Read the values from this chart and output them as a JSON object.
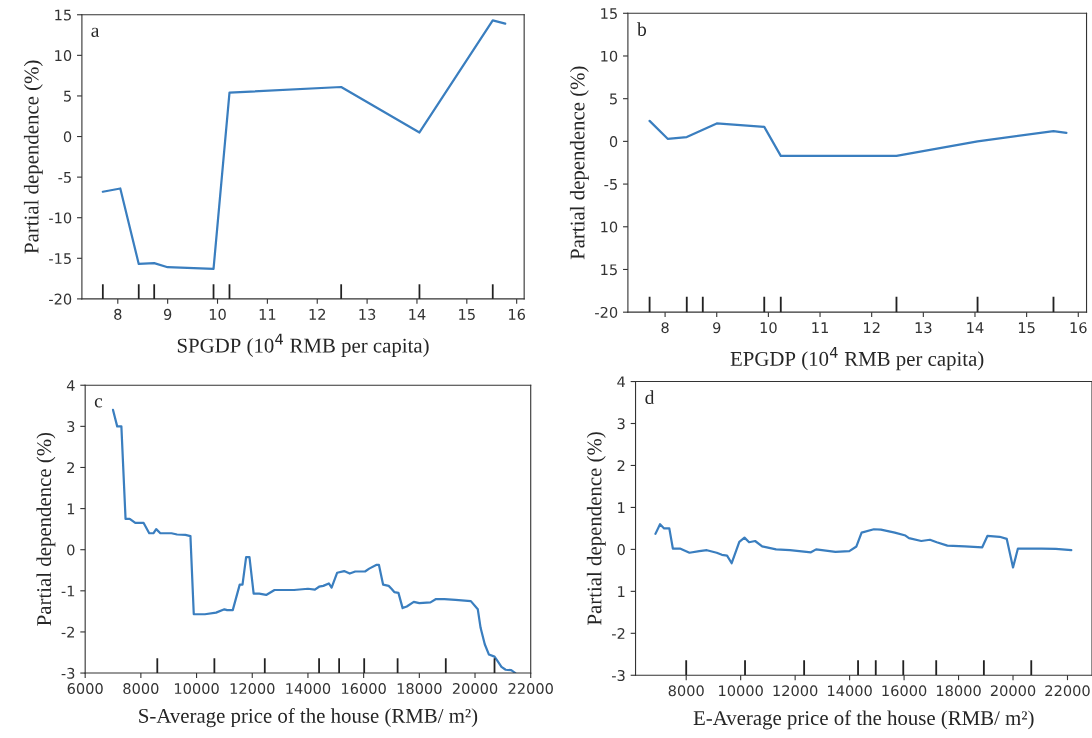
{
  "chart_data": [
    {
      "type": "line",
      "xlabel": "SPGDP (10$^{4}$ RMB per capita)",
      "ylabel": "Partial dependence (%)",
      "annotations": [
        "a"
      ],
      "xlim": [
        7.28,
        16.15
      ],
      "xticks": [
        8,
        9,
        10,
        11,
        12,
        13,
        14,
        15,
        16
      ],
      "ylim": [
        -20,
        15
      ],
      "yticks": [
        -20,
        -15,
        -10,
        -5,
        0,
        5,
        10,
        15
      ],
      "grid": false,
      "legend": false,
      "series": [
        {
          "color": "#3a7ebf",
          "x": [
            7.7,
            8.05,
            8.42,
            8.73,
            9.0,
            9.92,
            10.24,
            12.48,
            14.05,
            15.52,
            15.77
          ],
          "values": [
            -6.8,
            -6.4,
            -15.7,
            -15.6,
            -16.1,
            -16.3,
            5.4,
            6.1,
            0.5,
            14.3,
            13.9
          ]
        },
        {
          "type": "bar",
          "color": "#222222",
          "x": [
            7.7,
            8.42,
            8.73,
            9.92,
            10.24,
            12.48,
            14.05,
            15.52
          ],
          "base": [
            -20,
            -20,
            -20,
            -20,
            -20,
            -20,
            -20,
            -20
          ],
          "values": [
            1.8,
            1.8,
            1.8,
            1.8,
            1.8,
            1.8,
            1.8,
            1.8
          ]
        }
      ]
    },
    {
      "type": "line",
      "xlabel": "EPGDP (10$^{4}$ RMB per capita)",
      "ylabel": "Partial dependence (%)",
      "annotations": [
        "b"
      ],
      "xlim": [
        7.28,
        16.16
      ],
      "xticks": [
        8,
        9,
        10,
        11,
        12,
        13,
        14,
        15,
        16
      ],
      "ylim": [
        -20,
        15
      ],
      "yticks": [
        -20,
        {
          "value": -15,
          "label": "15"
        },
        {
          "value": -10,
          "label": "10"
        },
        -5,
        0,
        5,
        10,
        15
      ],
      "grid": false,
      "legend": false,
      "series": [
        {
          "color": "#3a7ebf",
          "x": [
            7.7,
            8.05,
            8.42,
            9.0,
            9.92,
            10.24,
            12.48,
            14.05,
            15.52,
            15.77
          ],
          "values": [
            2.4,
            0.3,
            0.5,
            2.1,
            1.7,
            -1.7,
            -1.7,
            0.0,
            1.2,
            1.0
          ]
        },
        {
          "type": "bar",
          "color": "#222222",
          "x": [
            7.7,
            8.42,
            8.73,
            9.92,
            10.24,
            12.48,
            14.05,
            15.52
          ],
          "base": [
            -20,
            -20,
            -20,
            -20,
            -20,
            -20,
            -20,
            -20
          ],
          "values": [
            1.8,
            1.8,
            1.8,
            1.8,
            1.8,
            1.8,
            1.8,
            1.8
          ]
        }
      ]
    },
    {
      "type": "line",
      "xlabel": "S-Average price of the house (RMB/ m²)",
      "ylabel": "Partial dependence (%)",
      "annotations": [
        "c"
      ],
      "xlim": [
        6000,
        22000
      ],
      "xticks": [
        6000,
        8000,
        10000,
        12000,
        14000,
        16000,
        18000,
        20000,
        22000
      ],
      "ylim": [
        -3,
        4
      ],
      "yticks": [
        -3,
        -2,
        -1,
        0,
        1,
        2,
        3,
        4
      ],
      "grid": false,
      "legend": false,
      "series": [
        {
          "color": "#3a7ebf",
          "x": [
            7000,
            7150,
            7300,
            7450,
            7600,
            7800,
            8100,
            8300,
            8450,
            8550,
            8700,
            9100,
            9300,
            9600,
            9780,
            9900,
            10300,
            10700,
            11000,
            11100,
            11300,
            11550,
            11650,
            11780,
            11900,
            12050,
            12250,
            12500,
            12800,
            13500,
            14000,
            14250,
            14400,
            14550,
            14750,
            14850,
            15050,
            15300,
            15500,
            15700,
            16050,
            16200,
            16450,
            16550,
            16700,
            16900,
            17000,
            17100,
            17250,
            17400,
            17550,
            17800,
            18000,
            18400,
            18600,
            18900,
            19300,
            19850,
            20100,
            20200,
            20350,
            20500,
            20700,
            20800,
            20950,
            21100,
            21300,
            21450
          ],
          "values": [
            3.4,
            3.0,
            3.0,
            0.75,
            0.75,
            0.65,
            0.65,
            0.4,
            0.4,
            0.5,
            0.4,
            0.4,
            0.37,
            0.36,
            0.33,
            -1.57,
            -1.57,
            -1.53,
            -1.45,
            -1.47,
            -1.47,
            -0.85,
            -0.85,
            -0.18,
            -0.18,
            -1.07,
            -1.07,
            -1.1,
            -0.98,
            -0.98,
            -0.95,
            -0.97,
            -0.9,
            -0.88,
            -0.82,
            -0.92,
            -0.56,
            -0.52,
            -0.58,
            -0.53,
            -0.53,
            -0.46,
            -0.37,
            -0.37,
            -0.85,
            -0.88,
            -0.95,
            -1.03,
            -1.05,
            -1.42,
            -1.38,
            -1.27,
            -1.3,
            -1.28,
            -1.2,
            -1.2,
            -1.22,
            -1.25,
            -1.45,
            -1.9,
            -2.3,
            -2.55,
            -2.6,
            -2.7,
            -2.85,
            -2.92,
            -2.93,
            -3.0
          ]
        },
        {
          "type": "bar",
          "color": "#222222",
          "x": [
            8590,
            10640,
            12450,
            14400,
            15120,
            16020,
            17220,
            18950,
            20700
          ],
          "base": [
            -3,
            -3,
            -3,
            -3,
            -3,
            -3,
            -3,
            -3,
            -3
          ],
          "values": [
            0.36,
            0.36,
            0.36,
            0.36,
            0.36,
            0.36,
            0.36,
            0.36,
            0.36
          ]
        }
      ]
    },
    {
      "type": "line",
      "xlabel": "E-Average price of the house (RMB/ m²)",
      "ylabel": "Partial dependence (%)",
      "annotations": [
        "d"
      ],
      "xlim": [
        6140,
        22900
      ],
      "xticks": [
        8000,
        10000,
        12000,
        14000,
        16000,
        18000,
        20000,
        22000
      ],
      "ylim": [
        -3,
        4
      ],
      "yticks": [
        -3,
        -2,
        {
          "value": -1,
          "label": "1"
        },
        0,
        1,
        2,
        3,
        4
      ],
      "grid": false,
      "legend": false,
      "series": [
        {
          "color": "#3a7ebf",
          "x": [
            6870,
            7040,
            7190,
            7380,
            7510,
            7770,
            8120,
            8480,
            8760,
            9120,
            9310,
            9500,
            9670,
            9950,
            10140,
            10310,
            10530,
            10790,
            11300,
            11810,
            12580,
            12770,
            13480,
            13990,
            14250,
            14440,
            14890,
            15150,
            15660,
            16050,
            16180,
            16630,
            16950,
            17200,
            17590,
            18230,
            18870,
            19060,
            19510,
            19770,
            20000,
            20180,
            21050,
            21570,
            22140
          ],
          "values": [
            0.37,
            0.6,
            0.5,
            0.5,
            0.02,
            0.02,
            -0.08,
            -0.04,
            -0.02,
            -0.08,
            -0.13,
            -0.15,
            -0.33,
            0.18,
            0.28,
            0.17,
            0.2,
            0.07,
            0.0,
            -0.02,
            -0.07,
            0.0,
            -0.06,
            -0.04,
            0.07,
            0.4,
            0.48,
            0.47,
            0.4,
            0.33,
            0.27,
            0.2,
            0.23,
            0.17,
            0.09,
            0.07,
            0.05,
            0.32,
            0.3,
            0.25,
            -0.43,
            0.02,
            0.02,
            0.01,
            -0.02
          ]
        },
        {
          "type": "bar",
          "color": "#222222",
          "x": [
            8000,
            10160,
            12330,
            14310,
            14960,
            15970,
            17180,
            18930,
            20670
          ],
          "base": [
            -3,
            -3,
            -3,
            -3,
            -3,
            -3,
            -3,
            -3,
            -3
          ],
          "values": [
            0.36,
            0.36,
            0.36,
            0.36,
            0.36,
            0.36,
            0.36,
            0.36,
            0.36
          ]
        }
      ]
    }
  ]
}
